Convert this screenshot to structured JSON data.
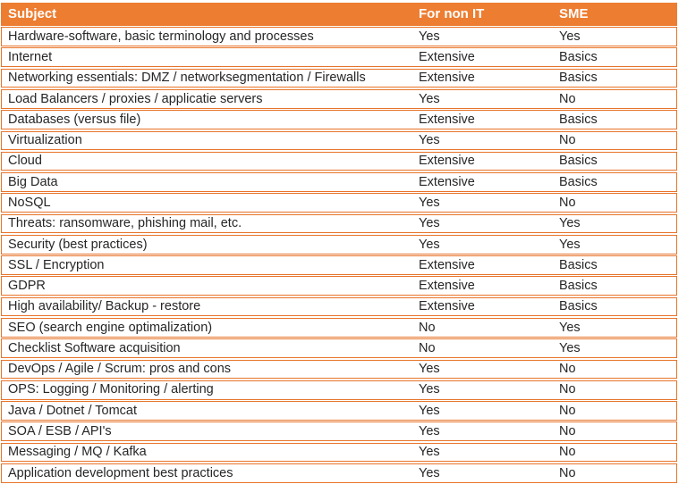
{
  "colors": {
    "accent": "#ED7D31",
    "row_border": "#E8742A",
    "header_text": "#FFFFFF",
    "body_text": "#262626"
  },
  "table": {
    "columns": [
      {
        "label": "Subject"
      },
      {
        "label": "For non IT"
      },
      {
        "label": "SME"
      }
    ],
    "rows": [
      {
        "subject": "Hardware-software, basic terminology and processes",
        "for_non_it": "Yes",
        "sme": "Yes"
      },
      {
        "subject": "Internet",
        "for_non_it": "Extensive",
        "sme": "Basics"
      },
      {
        "subject": "Networking essentials: DMZ / networksegmentation / Firewalls",
        "for_non_it": "Extensive",
        "sme": "Basics"
      },
      {
        "subject": "Load Balancers / proxies / applicatie servers",
        "for_non_it": "Yes",
        "sme": "No"
      },
      {
        "subject": "Databases (versus file)",
        "for_non_it": "Extensive",
        "sme": "Basics"
      },
      {
        "subject": "Virtualization",
        "for_non_it": "Yes",
        "sme": "No"
      },
      {
        "subject": "Cloud",
        "for_non_it": "Extensive",
        "sme": "Basics"
      },
      {
        "subject": "Big Data",
        "for_non_it": "Extensive",
        "sme": "Basics"
      },
      {
        "subject": "NoSQL",
        "for_non_it": "Yes",
        "sme": "No"
      },
      {
        "subject": "Threats: ransomware, phishing mail, etc.",
        "for_non_it": "Yes",
        "sme": "Yes"
      },
      {
        "subject": "Security (best practices)",
        "for_non_it": "Yes",
        "sme": "Yes"
      },
      {
        "subject": "SSL / Encryption",
        "for_non_it": "Extensive",
        "sme": "Basics"
      },
      {
        "subject": "GDPR",
        "for_non_it": "Extensive",
        "sme": "Basics"
      },
      {
        "subject": "High availability/ Backup - restore",
        "for_non_it": "Extensive",
        "sme": "Basics"
      },
      {
        "subject": "SEO (search engine optimalization)",
        "for_non_it": "No",
        "sme": "Yes"
      },
      {
        "subject": "Checklist Software acquisition",
        "for_non_it": "No",
        "sme": "Yes"
      },
      {
        "subject": "DevOps / Agile / Scrum: pros and cons",
        "for_non_it": "Yes",
        "sme": "No"
      },
      {
        "subject": "OPS: Logging / Monitoring / alerting",
        "for_non_it": "Yes",
        "sme": "No"
      },
      {
        "subject": "Java / Dotnet / Tomcat",
        "for_non_it": "Yes",
        "sme": "No"
      },
      {
        "subject": "SOA / ESB / API's",
        "for_non_it": "Yes",
        "sme": "No"
      },
      {
        "subject": "Messaging / MQ / Kafka",
        "for_non_it": "Yes",
        "sme": "No"
      },
      {
        "subject": "Application development best practices",
        "for_non_it": "Yes",
        "sme": "No"
      }
    ]
  }
}
